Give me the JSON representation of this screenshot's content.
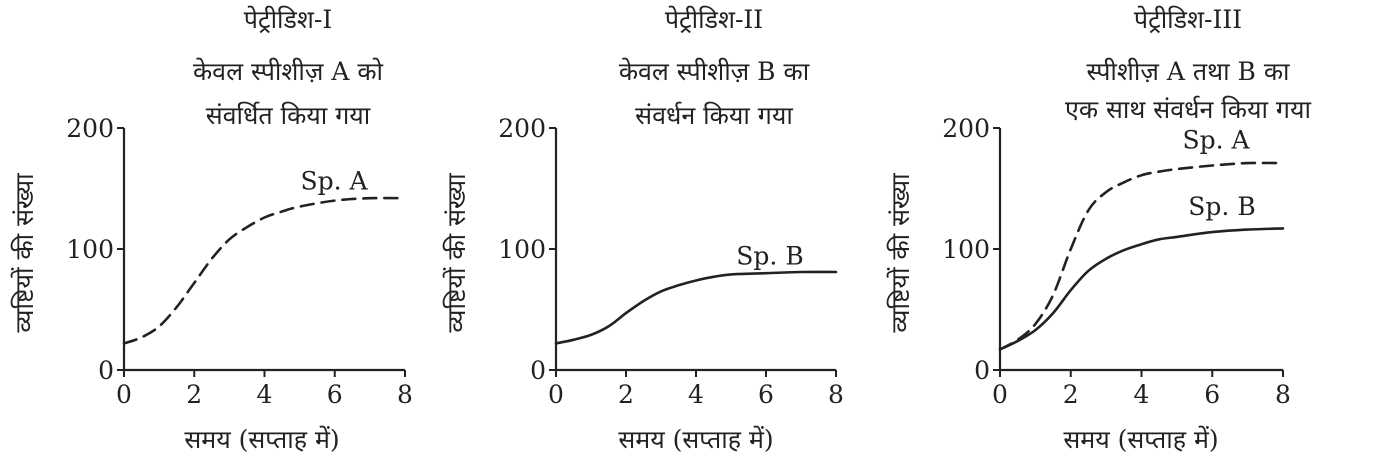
{
  "charts": [
    {
      "title_lines": [
        "पेट्रीडिश-I",
        "केवल स्पीशीज़ A को",
        "संवर्धित किया गया"
      ],
      "xlabel": "समय (सप्ताह में)",
      "ylabel": "व्यष्टियों की संख्या",
      "xticks": [
        "0",
        "2",
        "4",
        "6",
        "8"
      ],
      "yticks": [
        "0",
        "100",
        "200"
      ]
    },
    {
      "title_lines": [
        "पेट्रीडिश-II",
        "केवल स्पीशीज़ B का",
        "संवर्धन किया गया"
      ],
      "xlabel": "समय (सप्ताह में)",
      "ylabel": "व्यष्टियों की संख्या",
      "xticks": [
        "0",
        "2",
        "4",
        "6",
        "8"
      ],
      "yticks": [
        "0",
        "100",
        "200"
      ]
    },
    {
      "title_lines": [
        "पेट्रीडिश-III",
        "स्पीशीज़ A तथा B का",
        "एक साथ संवर्धन किया गया"
      ],
      "xlabel": "समय (सप्ताह में)",
      "ylabel": "व्यष्टियों की संख्या",
      "xticks": [
        "0",
        "2",
        "4",
        "6",
        "8"
      ],
      "yticks": [
        "0",
        "100",
        "200"
      ]
    }
  ],
  "chart_data": [
    {
      "type": "line",
      "title": "पेट्रीडिश-I केवल स्पीशीज़ A को संवर्धित किया गया",
      "xlabel": "समय (सप्ताह में)",
      "ylabel": "व्यष्टियों की संख्या",
      "xlim": [
        0,
        8
      ],
      "ylim": [
        0,
        200
      ],
      "grid": false,
      "series": [
        {
          "name": "Sp. A",
          "style": "dashed",
          "color": "#222222",
          "x": [
            0,
            0.5,
            1,
            1.5,
            2,
            2.5,
            3,
            3.5,
            4,
            4.5,
            5,
            6,
            7,
            8
          ],
          "y": [
            22,
            27,
            36,
            52,
            72,
            92,
            108,
            118,
            126,
            131,
            135,
            140,
            142,
            142
          ]
        }
      ]
    },
    {
      "type": "line",
      "title": "पेट्रीडिश-II केवल स्पीशीज़ B का संवर्धन किया गया",
      "xlabel": "समय (सप्ताह में)",
      "ylabel": "व्यष्टियों की संख्या",
      "xlim": [
        0,
        8
      ],
      "ylim": [
        0,
        200
      ],
      "grid": false,
      "series": [
        {
          "name": "Sp. B",
          "style": "solid",
          "color": "#222222",
          "x": [
            0,
            0.5,
            1,
            1.5,
            2,
            2.5,
            3,
            3.5,
            4,
            4.5,
            5,
            6,
            7,
            8
          ],
          "y": [
            22,
            25,
            29,
            36,
            47,
            57,
            65,
            70,
            74,
            77,
            79,
            80,
            81,
            81
          ]
        }
      ]
    },
    {
      "type": "line",
      "title": "पेट्रीडिश-III स्पीशीज़ A तथा B का एक साथ संवर्धन किया गया",
      "xlabel": "समय (सप्ताह में)",
      "ylabel": "व्यष्टियों की संख्या",
      "xlim": [
        0,
        8
      ],
      "ylim": [
        0,
        200
      ],
      "grid": false,
      "series": [
        {
          "name": "Sp. A",
          "style": "dashed",
          "color": "#222222",
          "x": [
            0,
            0.5,
            1,
            1.5,
            2,
            2.5,
            3,
            3.5,
            4,
            4.5,
            5,
            6,
            7,
            8
          ],
          "y": [
            17,
            25,
            38,
            62,
            100,
            132,
            147,
            155,
            161,
            164,
            166,
            169,
            171,
            171
          ]
        },
        {
          "name": "Sp. B",
          "style": "solid",
          "color": "#222222",
          "x": [
            0,
            0.5,
            1,
            1.5,
            2,
            2.5,
            3,
            3.5,
            4,
            4.5,
            5,
            6,
            7,
            8
          ],
          "y": [
            17,
            24,
            33,
            47,
            66,
            82,
            92,
            99,
            104,
            108,
            110,
            114,
            116,
            117
          ]
        }
      ]
    }
  ]
}
